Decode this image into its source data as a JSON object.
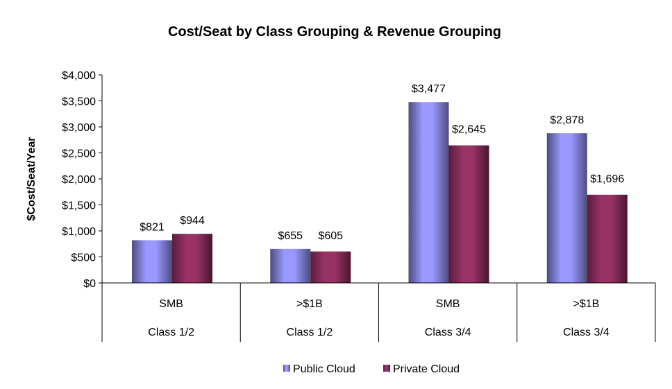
{
  "chart_data": {
    "type": "bar",
    "title": "Cost/Seat by Class Grouping & Revenue Grouping",
    "ylabel": "$Cost/Seat/Year",
    "xlabel": "",
    "ylim": [
      0,
      4000
    ],
    "yticks": [
      0,
      500,
      1000,
      1500,
      2000,
      2500,
      3000,
      3500,
      4000
    ],
    "ytick_labels": [
      "$0",
      "$500",
      "$1,000",
      "$1,500",
      "$2,000",
      "$2,500",
      "$3,000",
      "$3,500",
      "$4,000"
    ],
    "categories": [
      "SMB",
      ">$1B",
      "SMB",
      ">$1B"
    ],
    "category_groups": [
      "Class 1/2",
      "Class 1/2",
      "Class 3/4",
      "Class 3/4"
    ],
    "series": [
      {
        "name": "Public Cloud",
        "color": "#9999ff",
        "values": [
          821,
          655,
          3477,
          2878
        ],
        "labels": [
          "$821",
          "$655",
          "$3,477",
          "$2,878"
        ]
      },
      {
        "name": "Private Cloud",
        "color": "#993366",
        "values": [
          944,
          605,
          2645,
          1696
        ],
        "labels": [
          "$944",
          "$605",
          "$2,645",
          "$1,696"
        ]
      }
    ],
    "legend_position": "bottom",
    "grid": false
  }
}
